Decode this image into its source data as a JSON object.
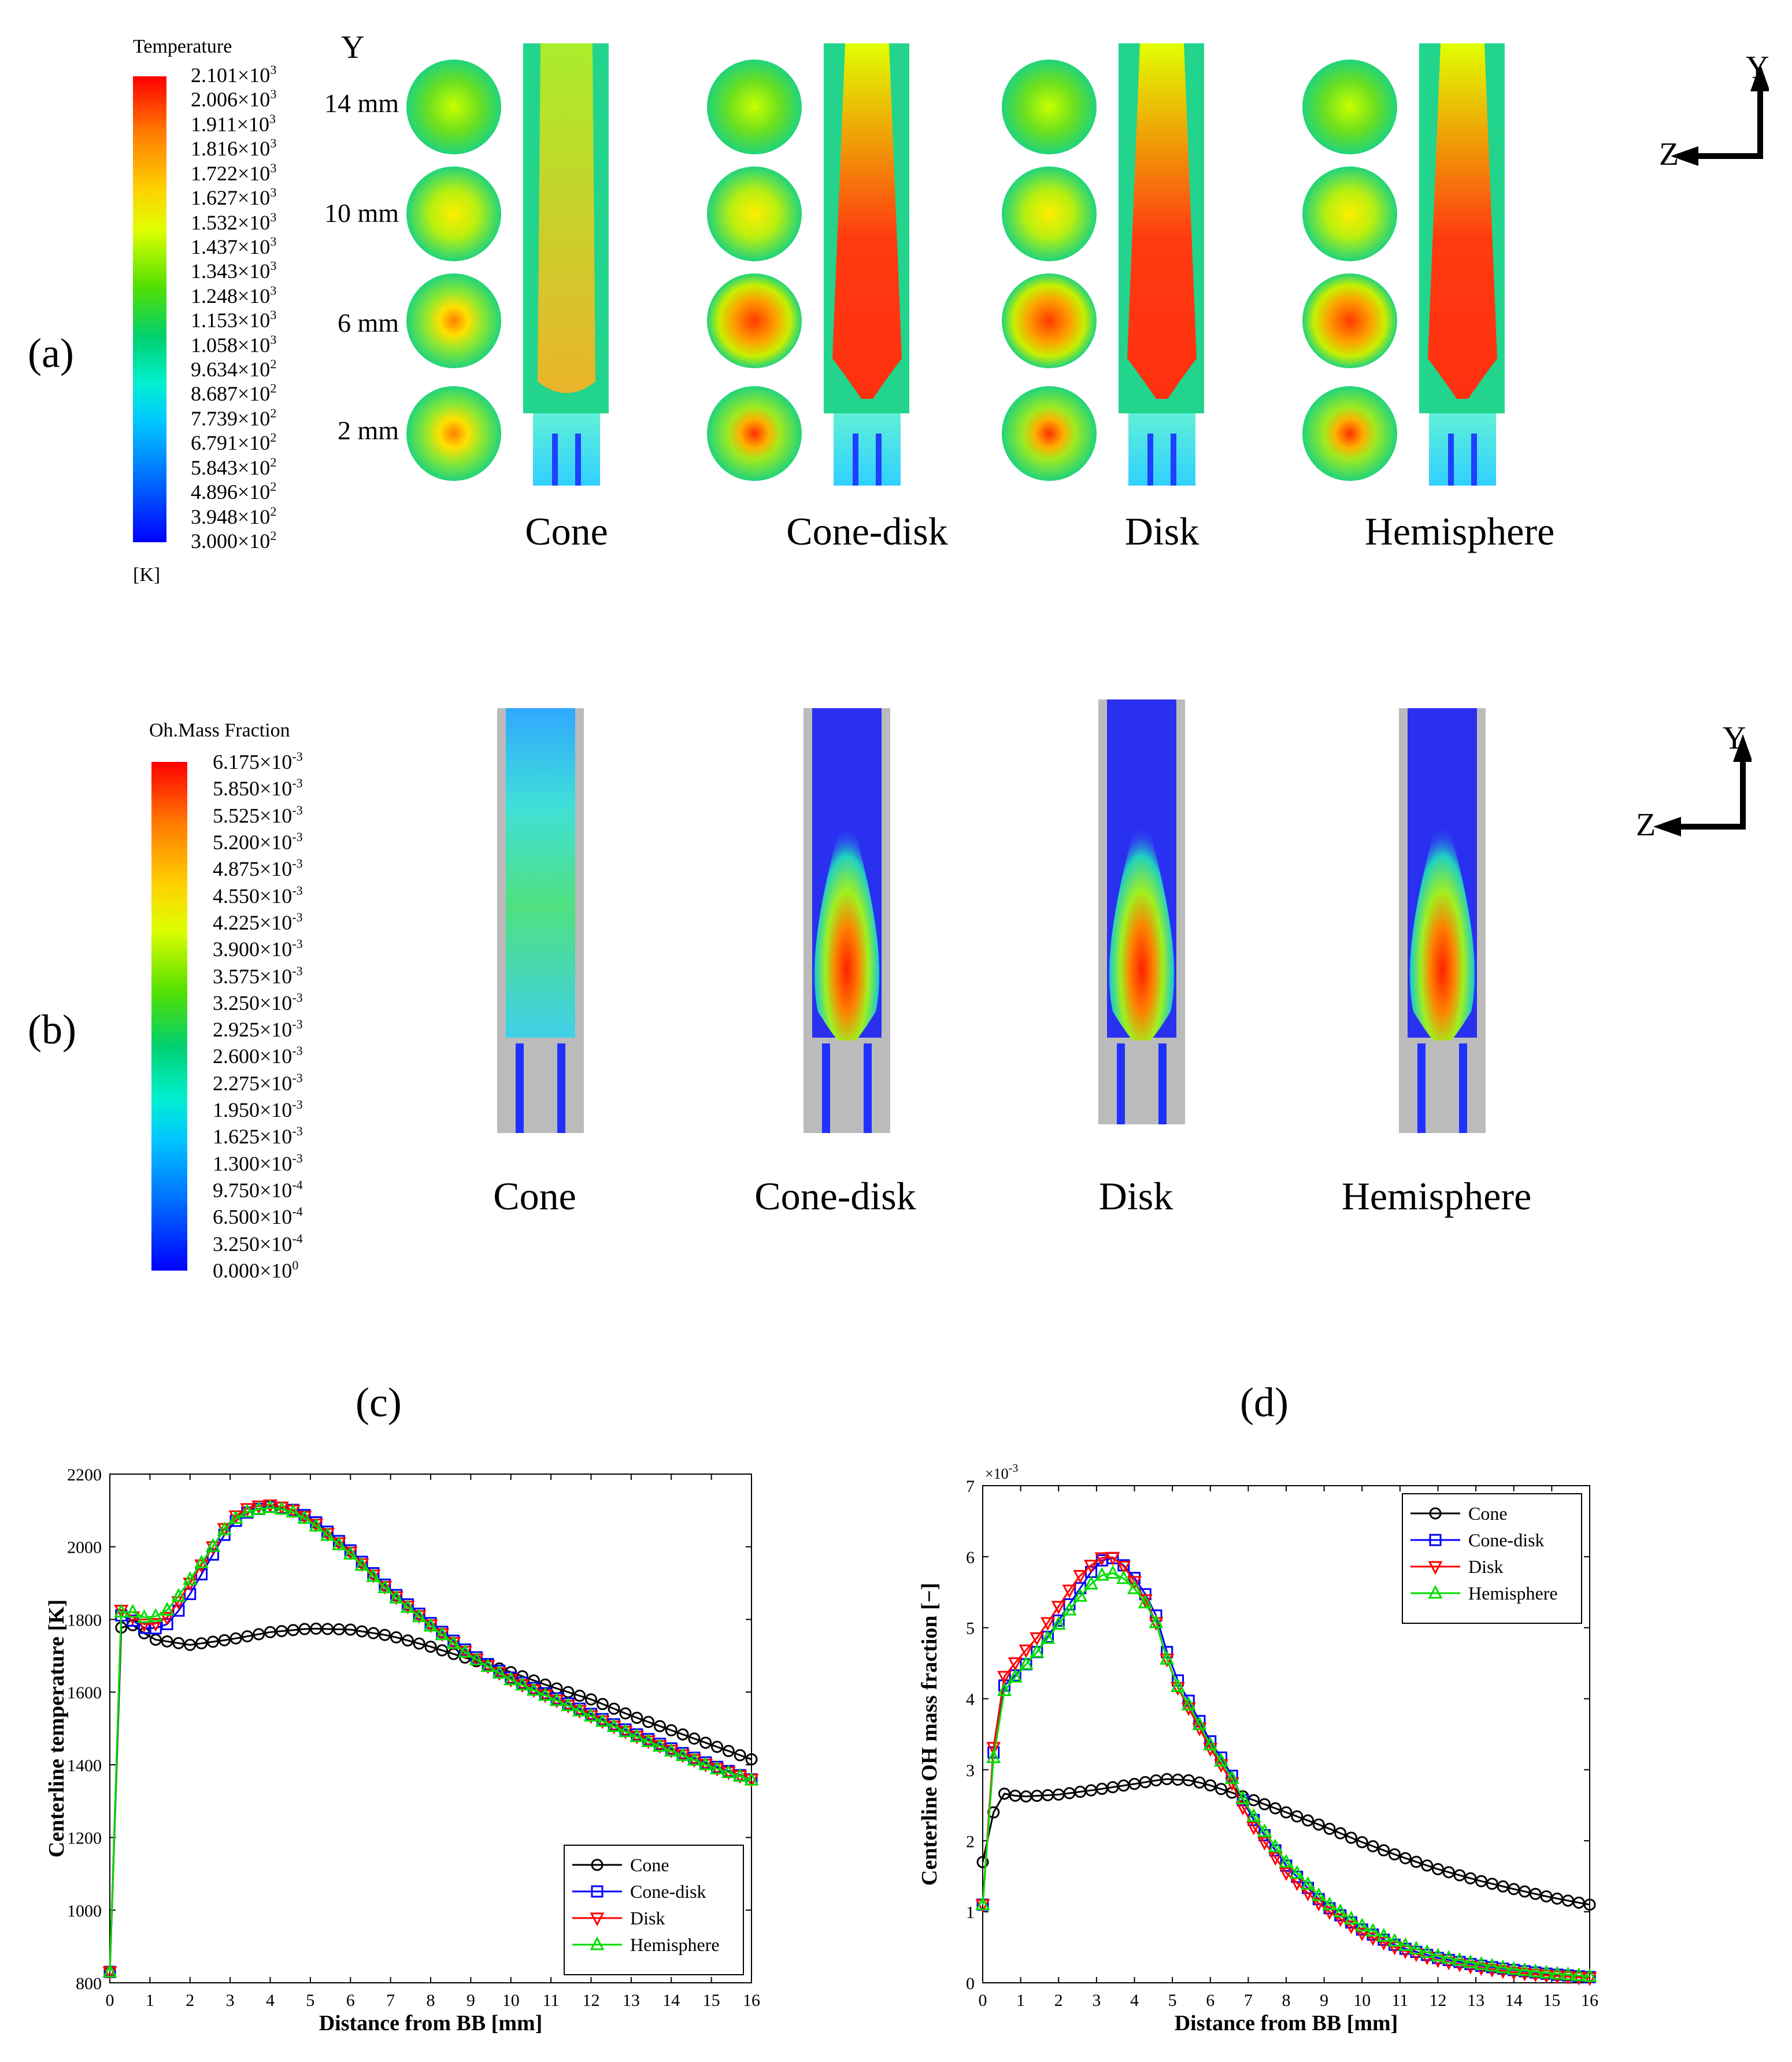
{
  "panel_a": {
    "label": "(a)",
    "legend_title": "Temperature",
    "legend_unit": "[K]",
    "legend_ticks": [
      {
        "m": "2.101×10",
        "e": "3"
      },
      {
        "m": "2.006×10",
        "e": "3"
      },
      {
        "m": "1.911×10",
        "e": "3"
      },
      {
        "m": "1.816×10",
        "e": "3"
      },
      {
        "m": "1.722×10",
        "e": "3"
      },
      {
        "m": "1.627×10",
        "e": "3"
      },
      {
        "m": "1.532×10",
        "e": "3"
      },
      {
        "m": "1.437×10",
        "e": "3"
      },
      {
        "m": "1.343×10",
        "e": "3"
      },
      {
        "m": "1.248×10",
        "e": "3"
      },
      {
        "m": "1.153×10",
        "e": "3"
      },
      {
        "m": "1.058×10",
        "e": "3"
      },
      {
        "m": "9.634×10",
        "e": "2"
      },
      {
        "m": "8.687×10",
        "e": "2"
      },
      {
        "m": "7.739×10",
        "e": "2"
      },
      {
        "m": "6.791×10",
        "e": "2"
      },
      {
        "m": "5.843×10",
        "e": "2"
      },
      {
        "m": "4.896×10",
        "e": "2"
      },
      {
        "m": "3.948×10",
        "e": "2"
      },
      {
        "m": "3.000×10",
        "e": "2"
      }
    ],
    "y_axis_label": "Y",
    "y_levels": [
      "14 mm",
      "10 mm",
      "6 mm",
      "2 mm"
    ],
    "cases": [
      "Cone",
      "Cone-disk",
      "Disk",
      "Hemisphere"
    ],
    "axis_y": "Y",
    "axis_z": "Z"
  },
  "panel_b": {
    "label": "(b)",
    "legend_title": "Oh.Mass Fraction",
    "legend_ticks": [
      {
        "m": "6.175×10",
        "e": "-3"
      },
      {
        "m": "5.850×10",
        "e": "-3"
      },
      {
        "m": "5.525×10",
        "e": "-3"
      },
      {
        "m": "5.200×10",
        "e": "-3"
      },
      {
        "m": "4.875×10",
        "e": "-3"
      },
      {
        "m": "4.550×10",
        "e": "-3"
      },
      {
        "m": "4.225×10",
        "e": "-3"
      },
      {
        "m": "3.900×10",
        "e": "-3"
      },
      {
        "m": "3.575×10",
        "e": "-3"
      },
      {
        "m": "3.250×10",
        "e": "-3"
      },
      {
        "m": "2.925×10",
        "e": "-3"
      },
      {
        "m": "2.600×10",
        "e": "-3"
      },
      {
        "m": "2.275×10",
        "e": "-3"
      },
      {
        "m": "1.950×10",
        "e": "-3"
      },
      {
        "m": "1.625×10",
        "e": "-3"
      },
      {
        "m": "1.300×10",
        "e": "-3"
      },
      {
        "m": "9.750×10",
        "e": "-4"
      },
      {
        "m": "6.500×10",
        "e": "-4"
      },
      {
        "m": "3.250×10",
        "e": "-4"
      },
      {
        "m": "0.000×10",
        "e": "0"
      }
    ],
    "cases": [
      "Cone",
      "Cone-disk",
      "Disk",
      "Hemisphere"
    ],
    "axis_y": "Y",
    "axis_z": "Z"
  },
  "colors": {
    "Cone": "#000000",
    "Cone-disk": "#0000ff",
    "Disk": "#ff0000",
    "Hemisphere": "#00dd00"
  },
  "chart_data": [
    {
      "type": "line",
      "panel_label": "(c)",
      "xlabel": "Distance from BB [mm]",
      "ylabel": "Centerline temperature [K]",
      "xlim": [
        0,
        16
      ],
      "ylim": [
        800,
        2200
      ],
      "xticks": [
        0,
        1,
        2,
        3,
        4,
        5,
        6,
        7,
        8,
        9,
        10,
        11,
        12,
        13,
        14,
        15,
        16
      ],
      "yticks": [
        800,
        1000,
        1200,
        1400,
        1600,
        1800,
        2000,
        2200
      ],
      "y_exponent_label": "",
      "legend_position": "bottom-right",
      "series": [
        {
          "name": "Cone",
          "marker": "circle",
          "x": [
            0,
            0.3,
            0.6,
            1.1,
            2,
            3,
            4,
            5,
            6,
            7,
            8,
            9,
            10,
            11,
            12,
            13,
            14,
            15,
            16
          ],
          "y": [
            830,
            1825,
            1780,
            1745,
            1730,
            1745,
            1765,
            1775,
            1772,
            1755,
            1725,
            1690,
            1655,
            1615,
            1580,
            1535,
            1495,
            1455,
            1415
          ]
        },
        {
          "name": "Cone-disk",
          "marker": "square",
          "x": [
            0,
            0.3,
            0.6,
            1,
            1.5,
            2,
            3,
            3.5,
            4,
            4.5,
            5,
            6,
            7,
            8,
            9,
            10,
            11,
            12,
            13,
            14,
            15,
            16
          ],
          "y": [
            830,
            1860,
            1790,
            1770,
            1790,
            1870,
            2060,
            2100,
            2110,
            2105,
            2080,
            1990,
            1880,
            1790,
            1705,
            1640,
            1590,
            1540,
            1490,
            1445,
            1400,
            1360
          ]
        },
        {
          "name": "Disk",
          "marker": "triangle-down",
          "x": [
            0,
            0.3,
            0.6,
            1,
            1.5,
            2,
            3,
            3.5,
            4,
            4.5,
            5,
            6,
            7,
            8,
            9,
            10,
            11,
            12,
            13,
            14,
            15,
            16
          ],
          "y": [
            830,
            1875,
            1800,
            1780,
            1810,
            1900,
            2075,
            2110,
            2115,
            2105,
            2075,
            1985,
            1875,
            1785,
            1700,
            1635,
            1585,
            1535,
            1485,
            1440,
            1395,
            1360
          ]
        },
        {
          "name": "Hemisphere",
          "marker": "triangle-up",
          "x": [
            0,
            0.3,
            0.6,
            1,
            1.5,
            2,
            3,
            3.5,
            4,
            4.5,
            5,
            6,
            7,
            8,
            9,
            10,
            11,
            12,
            13,
            14,
            15,
            16
          ],
          "y": [
            830,
            1870,
            1815,
            1800,
            1830,
            1910,
            2070,
            2100,
            2108,
            2100,
            2070,
            1980,
            1872,
            1782,
            1698,
            1634,
            1584,
            1534,
            1484,
            1438,
            1394,
            1358
          ]
        }
      ]
    },
    {
      "type": "line",
      "panel_label": "(d)",
      "xlabel": "Distance from BB [mm]",
      "ylabel": "Centerline OH mass fraction [−]",
      "xlim": [
        0,
        16
      ],
      "ylim": [
        0,
        7
      ],
      "xticks": [
        0,
        1,
        2,
        3,
        4,
        5,
        6,
        7,
        8,
        9,
        10,
        11,
        12,
        13,
        14,
        15,
        16
      ],
      "yticks": [
        0,
        1,
        2,
        3,
        4,
        5,
        6,
        7
      ],
      "y_exponent_label": "×10",
      "y_exponent_power": "-3",
      "legend_position": "top-right",
      "series": [
        {
          "name": "Cone",
          "marker": "circle",
          "x": [
            0,
            0.4,
            1,
            2,
            3,
            4,
            4.8,
            5.5,
            6,
            7,
            8,
            9,
            10,
            11,
            12,
            13,
            14,
            15,
            16
          ],
          "y": [
            1.7,
            2.68,
            2.62,
            2.65,
            2.72,
            2.8,
            2.87,
            2.85,
            2.78,
            2.6,
            2.4,
            2.2,
            1.98,
            1.78,
            1.6,
            1.45,
            1.32,
            1.2,
            1.1
          ]
        },
        {
          "name": "Cone-disk",
          "marker": "square",
          "x": [
            0,
            0.4,
            1,
            1.5,
            2,
            2.5,
            3,
            3.3,
            3.6,
            4,
            4.5,
            5,
            5.5,
            6,
            6.5,
            7,
            8,
            9,
            10,
            11,
            12,
            13,
            14,
            15,
            16
          ],
          "y": [
            1.1,
            4.1,
            4.4,
            4.7,
            5.1,
            5.5,
            5.9,
            6.0,
            5.95,
            5.7,
            5.3,
            4.4,
            3.9,
            3.4,
            3.0,
            2.4,
            1.65,
            1.1,
            0.75,
            0.5,
            0.35,
            0.25,
            0.18,
            0.12,
            0.08
          ]
        },
        {
          "name": "Disk",
          "marker": "triangle-down",
          "x": [
            0,
            0.4,
            1,
            1.5,
            2,
            2.5,
            3,
            3.3,
            3.6,
            4,
            4.5,
            5,
            5.5,
            6,
            6.5,
            7,
            8,
            9,
            10,
            11,
            12,
            13,
            14,
            15,
            16
          ],
          "y": [
            1.1,
            4.2,
            4.6,
            4.9,
            5.3,
            5.7,
            5.95,
            6.02,
            5.95,
            5.65,
            5.2,
            4.3,
            3.8,
            3.3,
            2.9,
            2.3,
            1.55,
            1.05,
            0.7,
            0.47,
            0.32,
            0.22,
            0.15,
            0.1,
            0.07
          ]
        },
        {
          "name": "Hemisphere",
          "marker": "triangle-up",
          "x": [
            0,
            0.4,
            1,
            1.5,
            2,
            2.5,
            3,
            3.3,
            3.6,
            4,
            4.5,
            5,
            5.5,
            6,
            6.5,
            7,
            8,
            9,
            10,
            11,
            12,
            13,
            14,
            15,
            16
          ],
          "y": [
            1.1,
            4.0,
            4.4,
            4.7,
            5.05,
            5.4,
            5.7,
            5.78,
            5.75,
            5.55,
            5.2,
            4.3,
            3.85,
            3.35,
            2.95,
            2.45,
            1.7,
            1.15,
            0.8,
            0.55,
            0.38,
            0.27,
            0.19,
            0.13,
            0.09
          ]
        }
      ]
    }
  ]
}
